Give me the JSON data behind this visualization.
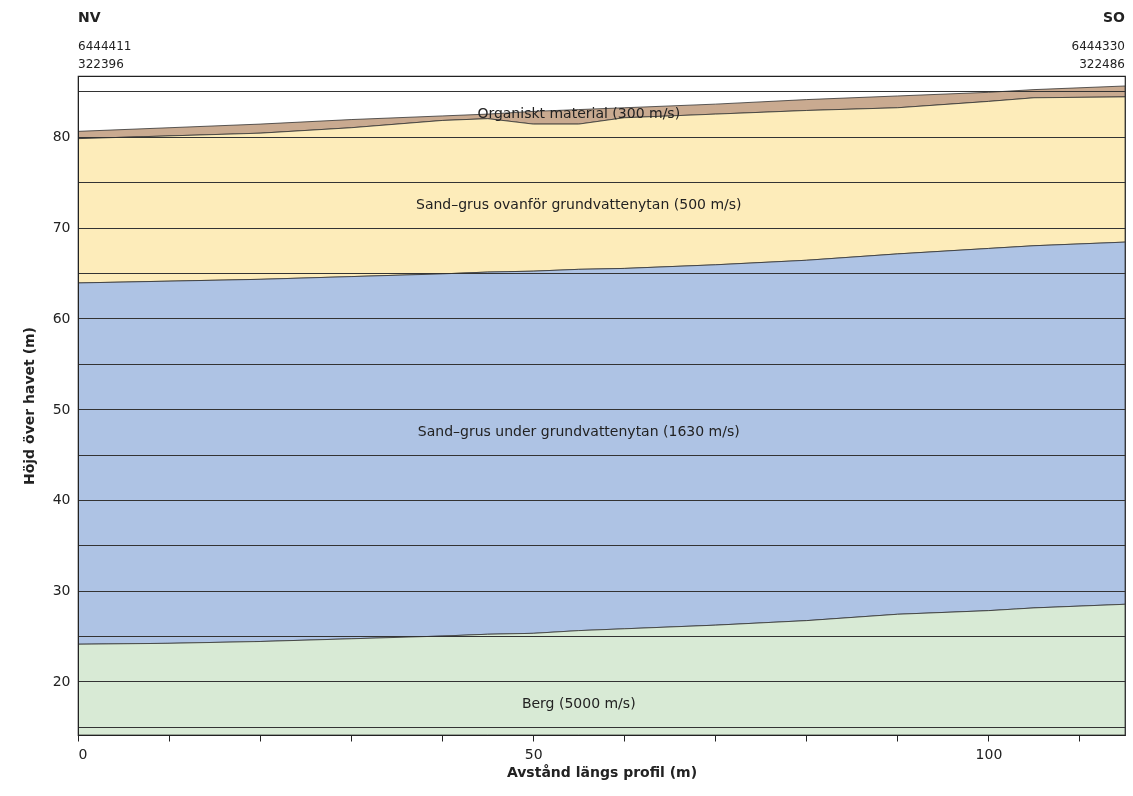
{
  "chart_data": {
    "type": "area",
    "xlabel": "Avstånd längs profil (m)",
    "ylabel": "Höjd över havet (m)",
    "annotations": [
      "NV",
      "6444411",
      "322396",
      "SO",
      "6444330",
      "322486"
    ],
    "x": [
      0,
      10,
      20,
      30,
      40,
      45,
      50,
      55,
      60,
      70,
      80,
      90,
      100,
      105,
      115
    ],
    "series": [
      {
        "name": "Organiskt material (300 m/s)",
        "color": "#c9aa90",
        "values": [
          80.6,
          81.0,
          81.4,
          81.9,
          82.3,
          82.5,
          82.8,
          83.0,
          83.2,
          83.6,
          84.1,
          84.5,
          84.9,
          85.2,
          85.6
        ]
      },
      {
        "name": "Sand–grus ovanför grundvattenytan (500 m/s)",
        "color": "#fdecba",
        "values": [
          79.8,
          80.1,
          80.4,
          81.0,
          81.8,
          82.0,
          81.4,
          81.4,
          82.1,
          82.5,
          82.9,
          83.2,
          83.9,
          84.3,
          84.4
        ]
      },
      {
        "name": "Sand–grus under grundvattenytan (1630 m/s)",
        "color": "#aec3e4",
        "values": [
          63.9,
          64.1,
          64.3,
          64.6,
          64.9,
          65.1,
          65.2,
          65.4,
          65.5,
          65.9,
          66.4,
          67.1,
          67.7,
          68.0,
          68.4
        ]
      },
      {
        "name": "Berg  (5000 m/s)",
        "color": "#d8ead5",
        "values": [
          24.1,
          24.2,
          24.4,
          24.7,
          25.0,
          25.2,
          25.3,
          25.6,
          25.8,
          26.2,
          26.7,
          27.4,
          27.8,
          28.1,
          28.5
        ]
      }
    ],
    "xlim": [
      0,
      115
    ],
    "ylim": [
      14.1,
      86.7
    ],
    "xticks": [
      0,
      {
        "value": 10,
        "label": null
      },
      {
        "value": 20,
        "label": null
      },
      {
        "value": 30,
        "label": null
      },
      {
        "value": 40,
        "label": null
      },
      50,
      {
        "value": 60,
        "label": null
      },
      {
        "value": 70,
        "label": null
      },
      {
        "value": 80,
        "label": null
      },
      {
        "value": 90,
        "label": null
      },
      100,
      {
        "value": 110,
        "label": null
      }
    ],
    "yticks": [
      {
        "value": 15,
        "label": null
      },
      20,
      {
        "value": 25,
        "label": null
      },
      30,
      {
        "value": 35,
        "label": null
      },
      40,
      {
        "value": 45,
        "label": null
      },
      50,
      {
        "value": 55,
        "label": null
      },
      60,
      {
        "value": 65,
        "label": null
      },
      70,
      {
        "value": 75,
        "label": null
      },
      80,
      {
        "value": 85,
        "label": null
      }
    ],
    "grid": "y",
    "legend": false
  }
}
